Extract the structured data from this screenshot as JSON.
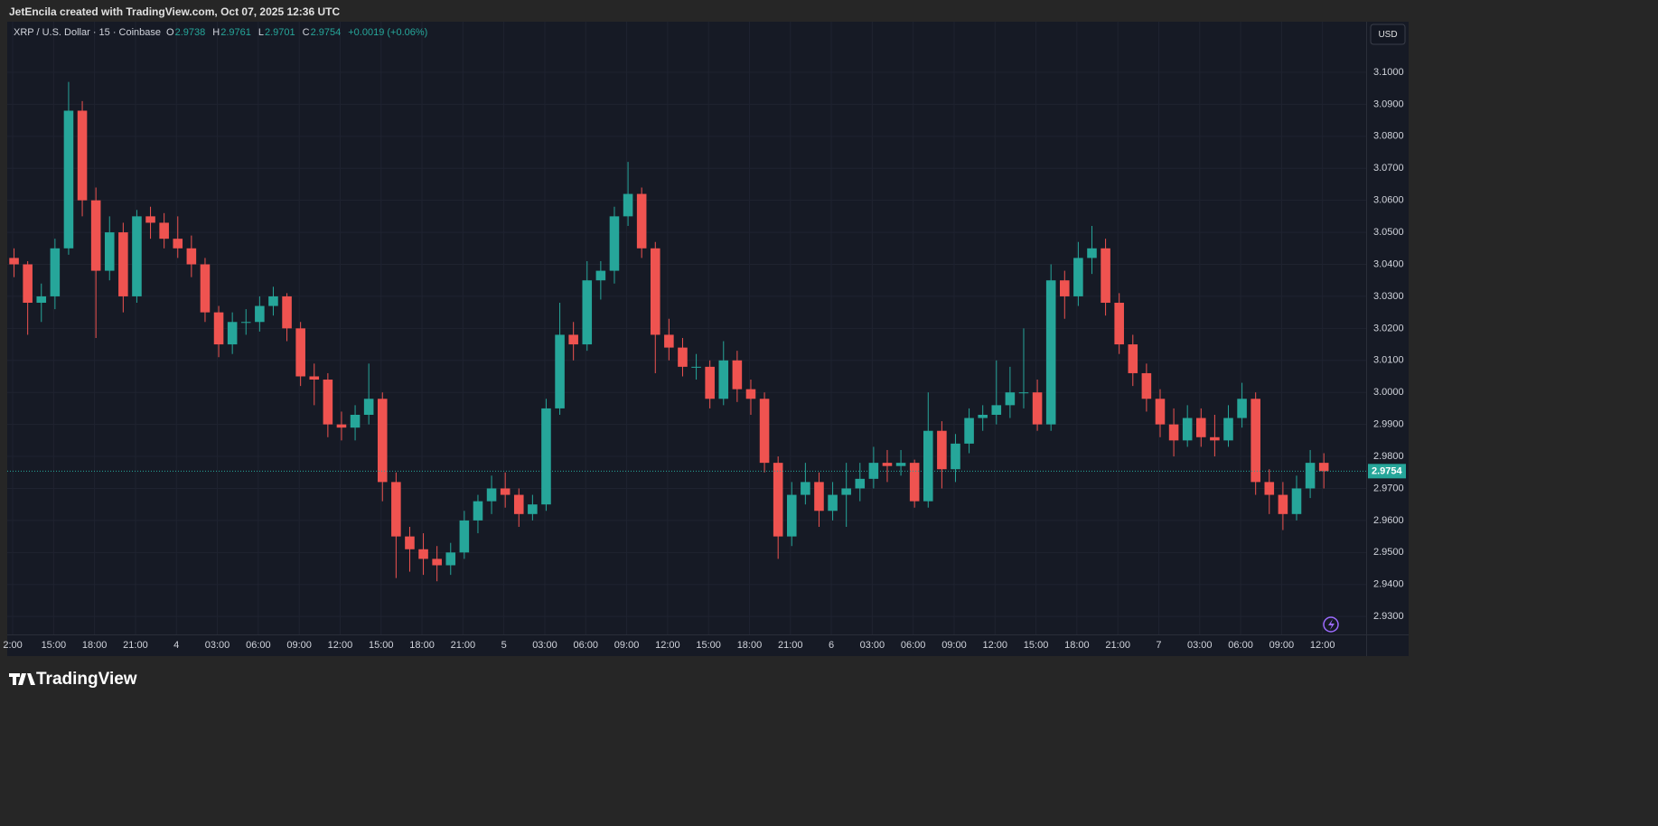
{
  "caption": "JetEncila created with TradingView.com, Oct 07, 2025 12:36 UTC",
  "brand": "TradingView",
  "currency_button": "USD",
  "chart_data": {
    "type": "candlestick",
    "title": "XRP / U.S. Dollar · 15 · Coinbase",
    "legend_fields": [
      {
        "label": "O",
        "value": 2.9738
      },
      {
        "label": "H",
        "value": 2.9761
      },
      {
        "label": "L",
        "value": 2.9701
      },
      {
        "label": "C",
        "value": 2.9754
      }
    ],
    "change": "+0.0019 (+0.06%)",
    "last_price": 2.9754,
    "up_color": "#26a69a",
    "down_color": "#ef5350",
    "grid": true,
    "ylim": [
      2.9244,
      3.1158
    ],
    "yticks": [
      {
        "value": 3.1,
        "label": "3.1000"
      },
      {
        "value": 3.09,
        "label": "3.0900"
      },
      {
        "value": 3.08,
        "label": "3.0800"
      },
      {
        "value": 3.07,
        "label": "3.0700"
      },
      {
        "value": 3.06,
        "label": "3.0600"
      },
      {
        "value": 3.05,
        "label": "3.0500"
      },
      {
        "value": 3.04,
        "label": "3.0400"
      },
      {
        "value": 3.03,
        "label": "3.0300"
      },
      {
        "value": 3.02,
        "label": "3.0200"
      },
      {
        "value": 3.01,
        "label": "3.0100"
      },
      {
        "value": 3.0,
        "label": "3.0000"
      },
      {
        "value": 2.99,
        "label": "2.9900"
      },
      {
        "value": 2.98,
        "label": "2.9800"
      },
      {
        "value": 2.97,
        "label": "2.9700"
      },
      {
        "value": 2.96,
        "label": "2.9600"
      },
      {
        "value": 2.95,
        "label": "2.9500"
      },
      {
        "value": 2.94,
        "label": "2.9400"
      },
      {
        "value": 2.93,
        "label": "2.9300"
      }
    ],
    "xlim": [
      0,
      99.6
    ],
    "xticks": [
      {
        "value": 0.4,
        "label": "2:00"
      },
      {
        "value": 3.4,
        "label": "15:00"
      },
      {
        "value": 6.4,
        "label": "18:00"
      },
      {
        "value": 9.4,
        "label": "21:00"
      },
      {
        "value": 12.4,
        "label": "4"
      },
      {
        "value": 15.4,
        "label": "03:00"
      },
      {
        "value": 18.4,
        "label": "06:00"
      },
      {
        "value": 21.4,
        "label": "09:00"
      },
      {
        "value": 24.4,
        "label": "12:00"
      },
      {
        "value": 27.4,
        "label": "15:00"
      },
      {
        "value": 30.4,
        "label": "18:00"
      },
      {
        "value": 33.4,
        "label": "21:00"
      },
      {
        "value": 36.4,
        "label": "5"
      },
      {
        "value": 39.4,
        "label": "03:00"
      },
      {
        "value": 42.4,
        "label": "06:00"
      },
      {
        "value": 45.4,
        "label": "09:00"
      },
      {
        "value": 48.4,
        "label": "12:00"
      },
      {
        "value": 51.4,
        "label": "15:00"
      },
      {
        "value": 54.4,
        "label": "18:00"
      },
      {
        "value": 57.4,
        "label": "21:00"
      },
      {
        "value": 60.4,
        "label": "6"
      },
      {
        "value": 63.4,
        "label": "03:00"
      },
      {
        "value": 66.4,
        "label": "06:00"
      },
      {
        "value": 69.4,
        "label": "09:00"
      },
      {
        "value": 72.4,
        "label": "12:00"
      },
      {
        "value": 75.4,
        "label": "15:00"
      },
      {
        "value": 78.4,
        "label": "18:00"
      },
      {
        "value": 81.4,
        "label": "21:00"
      },
      {
        "value": 84.4,
        "label": "7"
      },
      {
        "value": 87.4,
        "label": "03:00"
      },
      {
        "value": 90.4,
        "label": "06:00"
      },
      {
        "value": 93.4,
        "label": "09:00"
      },
      {
        "value": 96.4,
        "label": "12:00"
      }
    ],
    "candles": [
      [
        3.042,
        3.045,
        3.036,
        3.04
      ],
      [
        3.04,
        3.041,
        3.018,
        3.028
      ],
      [
        3.028,
        3.034,
        3.022,
        3.03
      ],
      [
        3.03,
        3.048,
        3.026,
        3.045
      ],
      [
        3.045,
        3.097,
        3.043,
        3.088
      ],
      [
        3.088,
        3.091,
        3.055,
        3.06
      ],
      [
        3.06,
        3.064,
        3.017,
        3.038
      ],
      [
        3.038,
        3.055,
        3.035,
        3.05
      ],
      [
        3.05,
        3.053,
        3.025,
        3.03
      ],
      [
        3.03,
        3.057,
        3.028,
        3.055
      ],
      [
        3.055,
        3.058,
        3.048,
        3.053
      ],
      [
        3.053,
        3.056,
        3.045,
        3.048
      ],
      [
        3.048,
        3.055,
        3.042,
        3.045
      ],
      [
        3.045,
        3.049,
        3.036,
        3.04
      ],
      [
        3.04,
        3.042,
        3.022,
        3.025
      ],
      [
        3.025,
        3.027,
        3.011,
        3.015
      ],
      [
        3.015,
        3.025,
        3.012,
        3.022
      ],
      [
        3.022,
        3.026,
        3.018,
        3.022
      ],
      [
        3.022,
        3.03,
        3.019,
        3.027
      ],
      [
        3.027,
        3.033,
        3.024,
        3.03
      ],
      [
        3.03,
        3.031,
        3.016,
        3.02
      ],
      [
        3.02,
        3.022,
        3.002,
        3.005
      ],
      [
        3.005,
        3.009,
        2.996,
        3.004
      ],
      [
        3.004,
        3.006,
        2.986,
        2.99
      ],
      [
        2.99,
        2.994,
        2.985,
        2.989
      ],
      [
        2.989,
        2.996,
        2.985,
        2.993
      ],
      [
        2.993,
        3.009,
        2.99,
        2.998
      ],
      [
        2.998,
        3.0,
        2.966,
        2.972
      ],
      [
        2.972,
        2.975,
        2.942,
        2.955
      ],
      [
        2.955,
        2.958,
        2.944,
        2.951
      ],
      [
        2.951,
        2.956,
        2.943,
        2.948
      ],
      [
        2.948,
        2.952,
        2.941,
        2.946
      ],
      [
        2.946,
        2.953,
        2.943,
        2.95
      ],
      [
        2.95,
        2.963,
        2.948,
        2.96
      ],
      [
        2.96,
        2.968,
        2.956,
        2.966
      ],
      [
        2.966,
        2.974,
        2.962,
        2.97
      ],
      [
        2.97,
        2.975,
        2.964,
        2.968
      ],
      [
        2.968,
        2.97,
        2.958,
        2.962
      ],
      [
        2.962,
        2.968,
        2.96,
        2.965
      ],
      [
        2.965,
        2.998,
        2.963,
        2.995
      ],
      [
        2.995,
        3.028,
        2.993,
        3.018
      ],
      [
        3.018,
        3.022,
        3.01,
        3.015
      ],
      [
        3.015,
        3.041,
        3.013,
        3.035
      ],
      [
        3.035,
        3.041,
        3.029,
        3.038
      ],
      [
        3.038,
        3.058,
        3.034,
        3.055
      ],
      [
        3.055,
        3.072,
        3.052,
        3.062
      ],
      [
        3.062,
        3.064,
        3.042,
        3.045
      ],
      [
        3.045,
        3.047,
        3.006,
        3.018
      ],
      [
        3.018,
        3.023,
        3.01,
        3.014
      ],
      [
        3.014,
        3.017,
        3.005,
        3.008
      ],
      [
        3.008,
        3.012,
        3.004,
        3.008
      ],
      [
        3.008,
        3.01,
        2.995,
        2.998
      ],
      [
        2.998,
        3.016,
        2.996,
        3.01
      ],
      [
        3.01,
        3.013,
        2.997,
        3.001
      ],
      [
        3.001,
        3.004,
        2.993,
        2.998
      ],
      [
        2.998,
        3.0,
        2.975,
        2.978
      ],
      [
        2.978,
        2.98,
        2.948,
        2.955
      ],
      [
        2.955,
        2.972,
        2.952,
        2.968
      ],
      [
        2.968,
        2.978,
        2.965,
        2.972
      ],
      [
        2.972,
        2.975,
        2.958,
        2.963
      ],
      [
        2.963,
        2.972,
        2.96,
        2.968
      ],
      [
        2.968,
        2.978,
        2.958,
        2.97
      ],
      [
        2.97,
        2.978,
        2.966,
        2.973
      ],
      [
        2.973,
        2.983,
        2.97,
        2.978
      ],
      [
        2.978,
        2.982,
        2.972,
        2.977
      ],
      [
        2.977,
        2.982,
        2.974,
        2.978
      ],
      [
        2.978,
        2.979,
        2.964,
        2.966
      ],
      [
        2.966,
        3.0,
        2.964,
        2.988
      ],
      [
        2.988,
        2.991,
        2.97,
        2.976
      ],
      [
        2.976,
        2.987,
        2.972,
        2.984
      ],
      [
        2.984,
        2.995,
        2.981,
        2.992
      ],
      [
        2.992,
        2.996,
        2.988,
        2.993
      ],
      [
        2.993,
        3.01,
        2.99,
        2.996
      ],
      [
        2.996,
        3.008,
        2.992,
        3.0
      ],
      [
        3.0,
        3.02,
        2.995,
        3.0
      ],
      [
        3.0,
        3.004,
        2.988,
        2.99
      ],
      [
        2.99,
        3.04,
        2.988,
        3.035
      ],
      [
        3.035,
        3.038,
        3.023,
        3.03
      ],
      [
        3.03,
        3.047,
        3.027,
        3.042
      ],
      [
        3.042,
        3.052,
        3.037,
        3.045
      ],
      [
        3.045,
        3.048,
        3.024,
        3.028
      ],
      [
        3.028,
        3.031,
        3.012,
        3.015
      ],
      [
        3.015,
        3.018,
        3.002,
        3.006
      ],
      [
        3.006,
        3.009,
        2.994,
        2.998
      ],
      [
        2.998,
        3.001,
        2.986,
        2.99
      ],
      [
        2.99,
        2.995,
        2.98,
        2.985
      ],
      [
        2.985,
        2.996,
        2.983,
        2.992
      ],
      [
        2.992,
        2.995,
        2.983,
        2.986
      ],
      [
        2.986,
        2.993,
        2.98,
        2.985
      ],
      [
        2.985,
        2.996,
        2.983,
        2.992
      ],
      [
        2.992,
        3.003,
        2.989,
        2.998
      ],
      [
        2.998,
        3.0,
        2.968,
        2.972
      ],
      [
        2.972,
        2.976,
        2.962,
        2.968
      ],
      [
        2.968,
        2.972,
        2.957,
        2.962
      ],
      [
        2.962,
        2.974,
        2.96,
        2.97
      ],
      [
        2.97,
        2.982,
        2.967,
        2.978
      ],
      [
        2.978,
        2.981,
        2.97,
        2.9754
      ]
    ]
  }
}
